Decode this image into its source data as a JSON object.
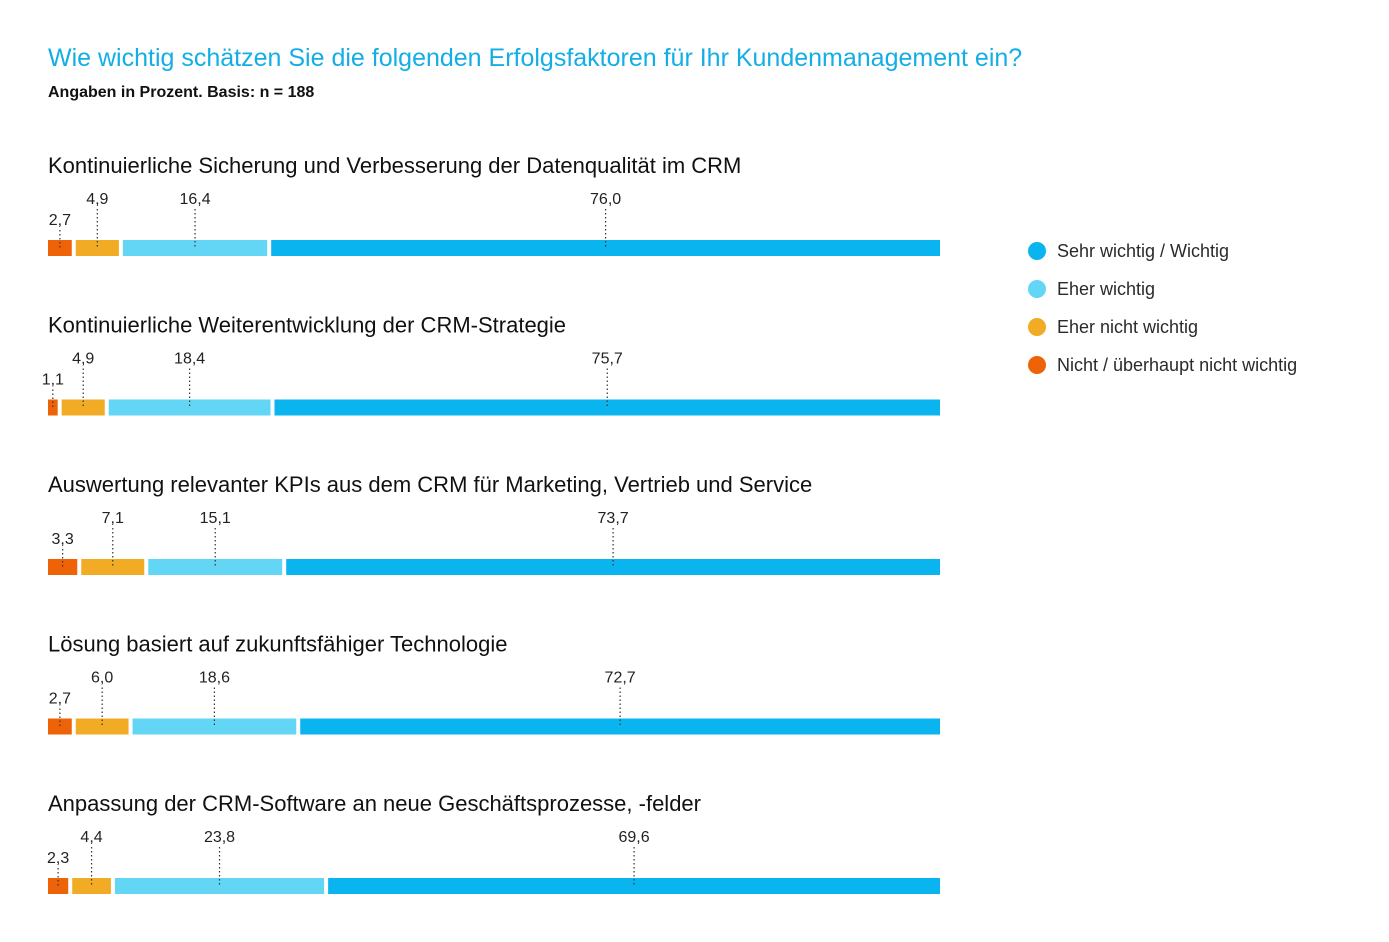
{
  "header": {
    "title": "Wie wichtig schätzen Sie die folgenden Erfolgsfaktoren für Ihr Kundenmanagement ein?",
    "subtitle": "Angaben in Prozent. Basis: n = 188"
  },
  "colors": {
    "title": "#13aee6",
    "sehr_wichtig": "#0ab4ee",
    "eher_wichtig": "#62d6f4",
    "eher_nicht_wichtig": "#f2ab24",
    "nicht_wichtig": "#ee6307"
  },
  "chart_data": {
    "type": "bar",
    "orientation": "horizontal",
    "stacked": true,
    "title": "Wie wichtig schätzen Sie die folgenden Erfolgsfaktoren für Ihr Kundenmanagement ein?",
    "subtitle": "Angaben in Prozent. Basis: n = 188",
    "categories": [
      "Kontinuierliche Sicherung und Verbesserung der Datenqualität im CRM",
      "Kontinuierliche Weiterentwicklung der CRM-Strategie",
      "Auswertung relevanter KPIs aus dem CRM für Marketing, Vertrieb und Service",
      "Lösung basiert auf zukunftsfähiger Technologie",
      "Anpassung der CRM-Software an neue Geschäftsprozesse, -felder"
    ],
    "series": [
      {
        "name": "Nicht / überhaupt nicht wichtig",
        "color": "#ee6307",
        "values": [
          2.7,
          1.1,
          3.3,
          2.7,
          2.3
        ],
        "labels": [
          "2,7",
          "1,1",
          "3,3",
          "2,7",
          "2,3"
        ]
      },
      {
        "name": "Eher nicht wichtig",
        "color": "#f2ab24",
        "values": [
          4.9,
          4.9,
          7.1,
          6.0,
          4.4
        ],
        "labels": [
          "4,9",
          "4,9",
          "7,1",
          "6,0",
          "4,4"
        ]
      },
      {
        "name": "Eher wichtig",
        "color": "#62d6f4",
        "values": [
          16.4,
          18.4,
          15.1,
          18.6,
          23.8
        ],
        "labels": [
          "16,4",
          "18,4",
          "15,1",
          "18,6",
          "23,8"
        ]
      },
      {
        "name": "Sehr wichtig / Wichtig",
        "color": "#0ab4ee",
        "values": [
          76.0,
          75.7,
          73.7,
          72.7,
          69.6
        ],
        "labels": [
          "76,0",
          "75,7",
          "73,7",
          "72,7",
          "69,6"
        ]
      }
    ],
    "xlim": [
      0,
      100
    ],
    "legend_position": "right",
    "grid": false
  },
  "legend": [
    {
      "label": "Sehr wichtig / Wichtig",
      "color": "#0ab4ee"
    },
    {
      "label": "Eher wichtig",
      "color": "#62d6f4"
    },
    {
      "label": "Eher nicht wichtig",
      "color": "#f2ab24"
    },
    {
      "label": "Nicht / überhaupt nicht wichtig",
      "color": "#ee6307"
    }
  ]
}
